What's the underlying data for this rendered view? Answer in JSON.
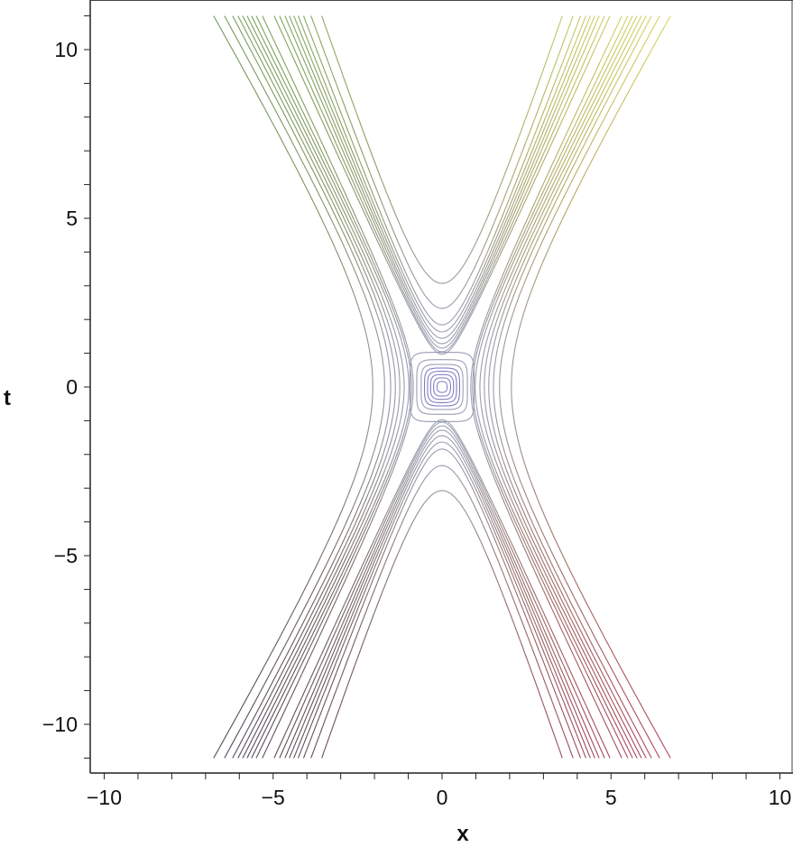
{
  "chart_data": {
    "type": "contour",
    "title": "",
    "xlabel": "x",
    "ylabel": "t",
    "xlim": [
      -10.4,
      10.4
    ],
    "ylim": [
      -11.4,
      11.5
    ],
    "grid": false,
    "xticks": [
      -10,
      -5,
      0,
      5,
      10
    ],
    "xtick_labels": [
      "−10",
      "−5",
      "0",
      "5",
      "10"
    ],
    "yticks": [
      -10,
      -5,
      0,
      5,
      10
    ],
    "ytick_labels": [
      "−10",
      "−5",
      "0",
      "5",
      "10"
    ],
    "minor_tick_step": 1,
    "t_range_of_curves": [
      -11,
      11
    ],
    "upper_lower_family": {
      "vertex_t": [
        3.07,
        2.33,
        1.84,
        1.63,
        1.44,
        1.28,
        1.15,
        1.04,
        0.97
      ],
      "x_at_t11": [
        3.56,
        3.88,
        4.1,
        4.26,
        4.39,
        4.52,
        4.65,
        4.81,
        4.97
      ]
    },
    "side_family": {
      "vertex_x": [
        2.05,
        1.7,
        1.52,
        1.38,
        1.25,
        1.12,
        0.98,
        0.9,
        0.85
      ],
      "x_at_t11": [
        6.76,
        6.44,
        6.2,
        6.04,
        5.9,
        5.77,
        5.64,
        5.5,
        5.32
      ]
    },
    "closed_rings_halfsize": [
      0.95,
      0.75,
      0.62,
      0.52,
      0.43,
      0.34,
      0.25,
      0.15
    ],
    "colors": {
      "top_left": "#6f9c5c",
      "top_right": "#d8d864",
      "bottom_left": "#4c4c5a",
      "bottom_right": "#b2465a",
      "center": "#9aa0b8",
      "rings": "#7a7ac4",
      "axis": "#222222"
    }
  }
}
